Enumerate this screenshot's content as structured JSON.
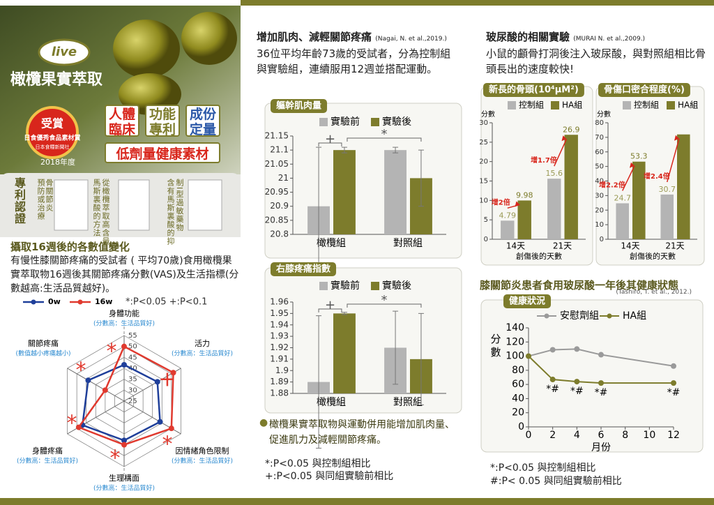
{
  "header": {
    "brand": "live",
    "product": "橄欖果實萃取",
    "award": {
      "title": "受賞",
      "name": "日食優秀食品素材賞",
      "org": "日本食糧新聞社",
      "year": "2018年度"
    },
    "features": [
      "人體臨床",
      "功能專利",
      "成份定量"
    ],
    "tagline": "低劑量健康素材"
  },
  "patents": {
    "title": "專利認證",
    "columns": [
      "預防或治療",
      "骨關節炎",
      "馬斯裏酸的方法",
      "從橄欖萃取高含量",
      "含有馬斯裏酸的抑",
      "制I型過敏藥物"
    ]
  },
  "left": {
    "heading": "攝取16週後的各數值變化",
    "text": "有慢性膝關節疼痛的受試者 ( 平均70歲)食用橄欖果實萃取物16週後其關節疼痛分數(VAS)及生活指標(分數越高:生活品質越好)。"
  },
  "middle": {
    "heading": "增加肌肉、減輕關節疼痛",
    "citation": "(Nagai, N. et al.,2019.)",
    "text": "36位平均年齡73歲的受試者，分為控制組與實驗組，連續服用12週並搭配運動。",
    "bullet": "橄欖果實萃取物與運動併用能增加肌肉量、促進肌力及減輕關節疼痛。",
    "notes": [
      "*:P<0.05 與控制組相比",
      "+:P<0.05 與同組實驗前相比"
    ]
  },
  "right": {
    "heading": "玻尿酸的相關實驗",
    "citation": "(MURAI N. et al.,2009.)",
    "text": "小鼠的顱骨打洞後注入玻尿酸，與對照組相比骨頭長出的速度較快!",
    "heading2": "膝關節炎患者食用玻尿酸一年後其健康狀態",
    "citation2": "(Tashiro, T. et al., 2012.)",
    "notes": [
      "*:P<0.05 與控制組相比",
      "#:P< 0.05 與同組實驗前相比"
    ]
  },
  "chart_data": [
    {
      "type": "radar",
      "note": "*:P<0.05 +:P<0.1",
      "axes": [
        {
          "label": "身體功能",
          "sublabel": "(分數高：生活品質好)"
        },
        {
          "label": "活力",
          "sublabel": "(分數高：生活品質好)"
        },
        {
          "label": "因情緒角色限制",
          "sublabel": "(分數高：生活品質好)"
        },
        {
          "label": "生理構面",
          "sublabel": "(分數高：生活品質好)"
        },
        {
          "label": "身體疼痛",
          "sublabel": "(分數高：生活品質好)"
        },
        {
          "label": "關節疼痛",
          "sublabel": "(數值越小疼痛越小)"
        }
      ],
      "rlim": [
        25,
        55
      ],
      "rticks": [
        25,
        30,
        35,
        40,
        45,
        50,
        55
      ],
      "series": [
        {
          "name": "0w",
          "color": "#1f3f9a",
          "values": [
            41.6,
            42.6,
            44,
            43,
            47,
            44
          ]
        },
        {
          "name": "16w",
          "color": "#e03a2f",
          "values": [
            50,
            51,
            50,
            45,
            49,
            35
          ]
        }
      ],
      "markers": [
        "*",
        "+",
        "*",
        "*",
        "*",
        "*"
      ]
    },
    {
      "type": "bar",
      "title": "軀幹肌肉量",
      "categories": [
        "橄欖組",
        "對照組"
      ],
      "ylim": [
        20.8,
        21.15
      ],
      "yticks": [
        20.8,
        20.85,
        20.9,
        20.95,
        21,
        21.05,
        21.1,
        21.15
      ],
      "series": [
        {
          "name": "實驗前",
          "color": "#b4b4b4",
          "values": [
            20.9,
            21.1
          ],
          "errors": [
            0.21,
            0.01
          ]
        },
        {
          "name": "實驗後",
          "color": "#7d7c2c",
          "values": [
            21.1,
            21.0
          ],
          "errors": [
            0.01,
            0.1
          ]
        }
      ],
      "brackets": [
        "+",
        "*"
      ]
    },
    {
      "type": "bar",
      "title": "右膝疼痛指數",
      "categories": [
        "橄欖組",
        "對照組"
      ],
      "ylim": [
        1.88,
        1.96
      ],
      "yticks": [
        1.88,
        1.89,
        1.9,
        1.91,
        1.92,
        1.93,
        1.94,
        1.95,
        1.96
      ],
      "series": [
        {
          "name": "實驗前",
          "color": "#b4b4b4",
          "values": [
            1.89,
            1.92
          ],
          "errors": [
            0.058,
            0.032
          ]
        },
        {
          "name": "實驗後",
          "color": "#7d7c2c",
          "values": [
            1.95,
            1.91
          ],
          "errors": [
            0.001,
            0.04
          ]
        }
      ],
      "brackets": [
        "+",
        "*"
      ]
    },
    {
      "type": "bar",
      "title": "新長的骨頭(10⁴μM²)",
      "ylabel": "分數",
      "xlabel": "創傷後的天數",
      "categories": [
        "14天",
        "21天"
      ],
      "ylim": [
        0,
        30
      ],
      "yticks": [
        0,
        5,
        10,
        15,
        20,
        25,
        30
      ],
      "series": [
        {
          "name": "控制組",
          "color": "#b4b4b4",
          "values": [
            4.79,
            15.6
          ],
          "value_labels": [
            "4.79",
            "15.6"
          ]
        },
        {
          "name": "HA組",
          "color": "#7d7c2c",
          "values": [
            9.98,
            26.9
          ],
          "value_labels": [
            "9.98",
            "26.9"
          ]
        }
      ],
      "increases": [
        "增2倍",
        "增1.7倍"
      ]
    },
    {
      "type": "bar",
      "title": "骨傷口密合程度(%)",
      "ylabel": "分數",
      "xlabel": "創傷後的天數",
      "categories": [
        "14天",
        "21天"
      ],
      "ylim": [
        0,
        80
      ],
      "yticks": [
        0,
        10,
        20,
        30,
        40,
        50,
        60,
        70,
        80
      ],
      "series": [
        {
          "name": "控制組",
          "color": "#b4b4b4",
          "values": [
            24.7,
            30.7
          ],
          "value_labels": [
            "24.7",
            "30.7"
          ]
        },
        {
          "name": "HA組",
          "color": "#7d7c2c",
          "values": [
            53.3,
            72
          ],
          "value_labels": [
            "53.3",
            null
          ]
        }
      ],
      "increases": [
        "增2.2倍",
        "增2.4倍"
      ]
    },
    {
      "type": "line",
      "title": "健康狀況",
      "ylabel": "分數",
      "xlabel": "月份",
      "x": [
        0,
        2,
        4,
        6,
        12
      ],
      "xlim": [
        0,
        12
      ],
      "xticks": [
        0,
        2,
        4,
        6,
        8,
        10,
        12
      ],
      "ylim": [
        0,
        140
      ],
      "yticks": [
        0,
        20,
        40,
        60,
        80,
        100,
        120,
        140
      ],
      "series": [
        {
          "name": "安慰劑組",
          "color": "#9a9a9a",
          "values": [
            100,
            109,
            110,
            102,
            86
          ]
        },
        {
          "name": "HA組",
          "color": "#7d7c2c",
          "values": [
            100,
            67,
            64,
            62,
            62
          ]
        }
      ],
      "markers": [
        {
          "x": 2,
          "label": "*#"
        },
        {
          "x": 4,
          "label": "*#"
        },
        {
          "x": 6,
          "label": "*#"
        },
        {
          "x": 12,
          "label": "*#"
        }
      ]
    }
  ]
}
